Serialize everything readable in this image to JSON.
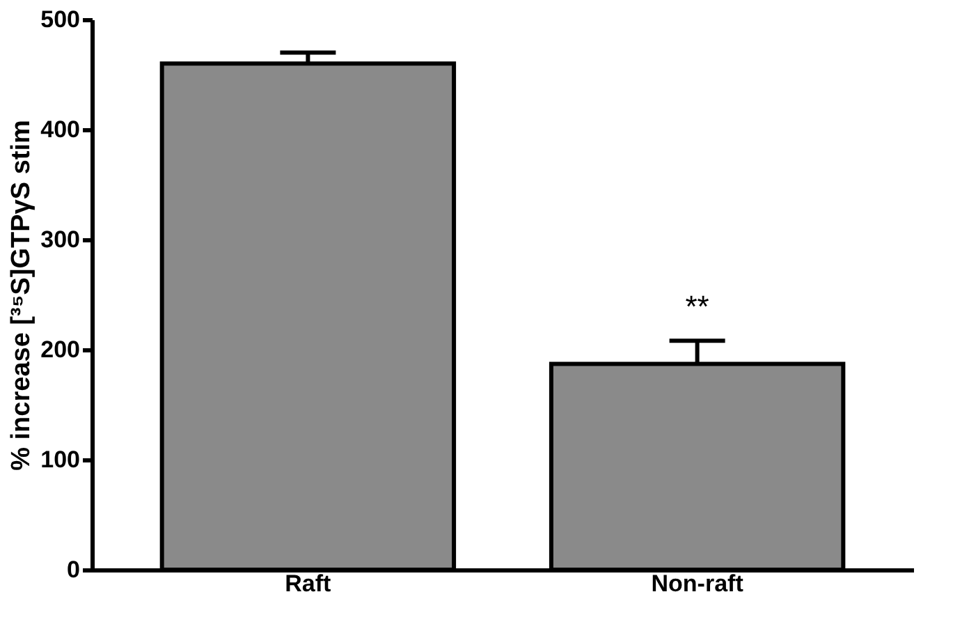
{
  "chart_data": {
    "type": "bar",
    "categories": [
      "Raft",
      "Non-raft"
    ],
    "values": [
      460,
      187
    ],
    "colors": [
      "#8a8a8a",
      "#8a8a8a"
    ],
    "errors": [
      [
        460,
        470
      ],
      [
        187,
        208
      ]
    ],
    "ylabel": "% increase [³⁵S]GTPγS stim",
    "ylim": [
      0,
      500
    ],
    "yticks": [
      0,
      100,
      200,
      300,
      400,
      500
    ],
    "annotations": [
      "**"
    ],
    "grid": false
  }
}
